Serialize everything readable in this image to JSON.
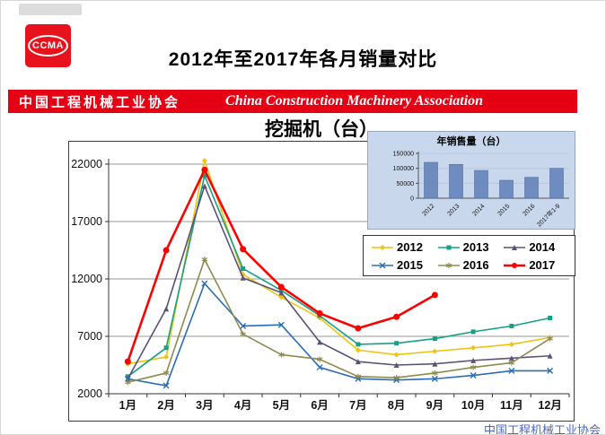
{
  "header": {
    "logo_text": "CCMA",
    "title": "2012年至2017年各月销量对比"
  },
  "banner": {
    "cn": "中国工程机械工业协会",
    "en": "China Construction Machinery Association"
  },
  "brand": {
    "banner_bg": "#e60014",
    "logo_bg": "#e8121c",
    "inset_bg": "#c9d7ed"
  },
  "chart_data": [
    {
      "type": "line",
      "title": "挖掘机（台）",
      "categories": [
        "1月",
        "2月",
        "3月",
        "4月",
        "5月",
        "6月",
        "7月",
        "8月",
        "9月",
        "10月",
        "11月",
        "12月"
      ],
      "ylim": [
        2000,
        22000
      ],
      "yticks": [
        2000,
        7000,
        12000,
        17000,
        22000
      ],
      "grid": true,
      "legend_position": "right-middle",
      "series": [
        {
          "name": "2012",
          "color": "#eec312",
          "marker": "diamond",
          "values": [
            4600,
            5200,
            22300,
            12400,
            10400,
            8600,
            5800,
            5400,
            5700,
            6000,
            6300,
            6900
          ]
        },
        {
          "name": "2013",
          "color": "#16a085",
          "marker": "square",
          "values": [
            3500,
            6000,
            21000,
            12900,
            11000,
            8800,
            6300,
            6400,
            6800,
            7400,
            7900,
            8600
          ]
        },
        {
          "name": "2014",
          "color": "#5b5177",
          "marker": "triangle",
          "values": [
            3300,
            9400,
            20100,
            12100,
            10800,
            6500,
            4800,
            4500,
            4600,
            4900,
            5100,
            5300
          ]
        },
        {
          "name": "2015",
          "color": "#2b6cb8",
          "marker": "x",
          "values": [
            3300,
            2700,
            11600,
            7900,
            8000,
            4300,
            3300,
            3200,
            3300,
            3600,
            4000,
            4000
          ]
        },
        {
          "name": "2016",
          "color": "#8f8a4e",
          "marker": "star",
          "values": [
            3000,
            3800,
            13700,
            7200,
            5400,
            5000,
            3500,
            3400,
            3800,
            4300,
            4700,
            6800
          ]
        },
        {
          "name": "2017",
          "color": "#fe0000",
          "marker": "circle",
          "width": 2.6,
          "values": [
            4800,
            14500,
            21500,
            14600,
            11300,
            9000,
            7700,
            8700,
            10600,
            null,
            null,
            null
          ]
        }
      ]
    },
    {
      "type": "bar",
      "title": "年销售量（台）",
      "categories": [
        "2012",
        "2013",
        "2014",
        "2015",
        "2016",
        "2017年1-9"
      ],
      "values": [
        120000,
        113000,
        93000,
        60000,
        70000,
        100000
      ],
      "ylim": [
        0,
        150000
      ],
      "yticks": [
        0,
        50000,
        100000,
        150000
      ],
      "bar_color": "#6f8cc0"
    }
  ],
  "watermark": "中国工程机械工业协会"
}
